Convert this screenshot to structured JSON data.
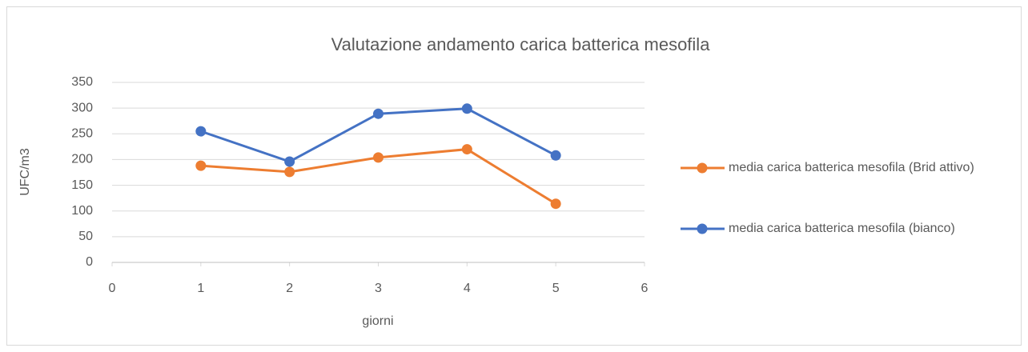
{
  "chart_data": {
    "type": "line",
    "title": "Valutazione andamento carica batterica mesofila",
    "x_label": "giorni",
    "y_label": "UFC/m3",
    "x": [
      1,
      2,
      3,
      4,
      5
    ],
    "series": [
      {
        "name": "media carica batterica mesofila (Brid attivo)",
        "color": "#ed7d31",
        "values": [
          188,
          176,
          204,
          220,
          114
        ]
      },
      {
        "name": "media carica batterica mesofila (bianco)",
        "color": "#4472c4",
        "values": [
          255,
          196,
          289,
          299,
          208
        ]
      }
    ],
    "xlim": [
      0,
      6
    ],
    "xticks": [
      0,
      1,
      2,
      3,
      4,
      5,
      6
    ],
    "ylim": [
      0,
      350
    ],
    "yticks": [
      0,
      50,
      100,
      150,
      200,
      250,
      300,
      350
    ],
    "grid": true,
    "legend": "right"
  }
}
